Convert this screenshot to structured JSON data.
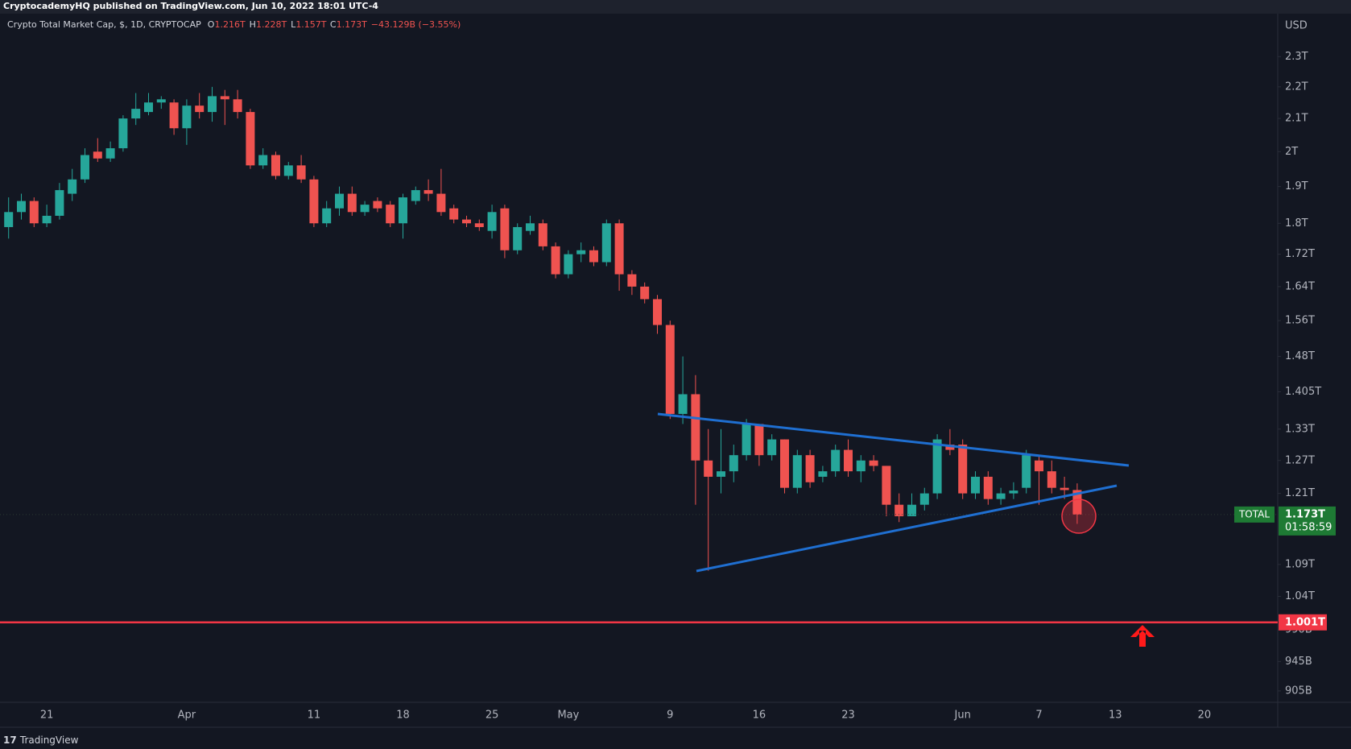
{
  "header": "CryptocademyHQ published on TradingView.com, Jun 10, 2022 18:01 UTC-4",
  "footer": "TradingView",
  "chart_data": {
    "type": "candlestick",
    "legend": {
      "symbol": "Crypto Total Market Cap, $, 1D, CRYPTOCAP",
      "fields": [
        {
          "key": "O",
          "value": "1.216T"
        },
        {
          "key": "H",
          "value": "1.228T"
        },
        {
          "key": "L",
          "value": "1.157T"
        },
        {
          "key": "C",
          "value": "1.173T"
        }
      ],
      "change": "−43.129B (−3.55%)"
    },
    "y_unit": "USD",
    "log_scale": true,
    "grid": false,
    "up_color": "#26a69a",
    "down_color": "#ef5350",
    "categories": [
      null,
      null,
      null,
      "21",
      null,
      null,
      null,
      null,
      null,
      null,
      null,
      null,
      null,
      null,
      "Apr",
      null,
      null,
      null,
      null,
      null,
      null,
      null,
      null,
      null,
      "11",
      null,
      null,
      null,
      null,
      null,
      null,
      "18",
      null,
      null,
      null,
      null,
      null,
      null,
      "25",
      null,
      null,
      null,
      null,
      null,
      "May",
      null,
      null,
      null,
      null,
      null,
      null,
      null,
      "9",
      null,
      null,
      null,
      null,
      null,
      null,
      "16",
      null,
      null,
      null,
      null,
      null,
      null,
      "23",
      null,
      null,
      null,
      null,
      null,
      null,
      null,
      null,
      "Jun",
      null,
      null,
      null,
      null,
      null,
      "7",
      null,
      null,
      null,
      null,
      null,
      "13",
      null,
      null,
      null,
      null,
      null,
      null,
      "20",
      null,
      null,
      null,
      null,
      null
    ],
    "open": [
      1.79,
      1.83,
      1.86,
      1.8,
      1.82,
      1.88,
      1.92,
      2.0,
      1.98,
      2.01,
      2.1,
      2.12,
      2.15,
      2.15,
      2.07,
      2.14,
      2.12,
      2.17,
      2.16,
      2.12,
      1.96,
      1.99,
      1.93,
      1.96,
      1.92,
      1.8,
      1.84,
      1.88,
      1.83,
      1.86,
      1.85,
      1.8,
      1.86,
      1.89,
      1.88,
      1.84,
      1.81,
      1.8,
      1.78,
      1.84,
      1.73,
      1.78,
      1.8,
      1.74,
      1.67,
      1.72,
      1.73,
      1.7,
      1.8,
      1.67,
      1.64,
      1.61,
      1.55,
      1.36,
      1.4,
      1.27,
      1.24,
      1.25,
      1.28,
      1.34,
      1.28,
      1.31,
      1.22,
      1.28,
      1.24,
      1.25,
      1.29,
      1.25,
      1.27,
      1.26,
      1.19,
      1.17,
      1.19,
      1.21,
      1.3,
      1.3,
      1.21,
      1.24,
      1.2,
      1.21,
      1.22,
      1.27,
      1.25,
      1.22,
      1.216,
      null,
      null,
      null,
      null,
      null,
      null,
      null,
      null,
      null,
      null,
      null,
      null,
      null,
      null,
      null
    ],
    "high": [
      1.87,
      1.88,
      1.87,
      1.85,
      1.91,
      1.95,
      2.01,
      2.04,
      2.03,
      2.11,
      2.18,
      2.18,
      2.17,
      2.16,
      2.16,
      2.18,
      2.2,
      2.19,
      2.19,
      2.13,
      2.01,
      2.0,
      1.97,
      1.99,
      1.93,
      1.86,
      1.9,
      1.9,
      1.86,
      1.87,
      1.86,
      1.88,
      1.9,
      1.92,
      1.95,
      1.85,
      1.82,
      1.81,
      1.85,
      1.85,
      1.8,
      1.82,
      1.81,
      1.75,
      1.73,
      1.75,
      1.74,
      1.81,
      1.81,
      1.68,
      1.65,
      1.62,
      1.56,
      1.48,
      1.44,
      1.33,
      1.33,
      1.3,
      1.35,
      1.34,
      1.32,
      1.31,
      1.29,
      1.29,
      1.26,
      1.3,
      1.31,
      1.28,
      1.28,
      1.26,
      1.21,
      1.21,
      1.22,
      1.32,
      1.33,
      1.31,
      1.25,
      1.25,
      1.22,
      1.23,
      1.29,
      1.28,
      1.27,
      1.24,
      1.228,
      null,
      null,
      null,
      null,
      null,
      null,
      null,
      null,
      null,
      null,
      null,
      null,
      null,
      null,
      null
    ],
    "low": [
      1.76,
      1.81,
      1.79,
      1.79,
      1.81,
      1.86,
      1.91,
      1.97,
      1.97,
      2.0,
      2.08,
      2.11,
      2.13,
      2.05,
      2.02,
      2.1,
      2.09,
      2.08,
      2.1,
      1.95,
      1.95,
      1.92,
      1.92,
      1.91,
      1.79,
      1.79,
      1.82,
      1.82,
      1.82,
      1.83,
      1.79,
      1.76,
      1.85,
      1.86,
      1.82,
      1.8,
      1.79,
      1.78,
      1.76,
      1.71,
      1.72,
      1.77,
      1.73,
      1.66,
      1.66,
      1.7,
      1.69,
      1.69,
      1.63,
      1.62,
      1.6,
      1.53,
      1.35,
      1.34,
      1.19,
      1.08,
      1.21,
      1.23,
      1.27,
      1.26,
      1.27,
      1.21,
      1.21,
      1.22,
      1.23,
      1.24,
      1.24,
      1.23,
      1.25,
      1.17,
      1.16,
      1.17,
      1.18,
      1.2,
      1.28,
      1.2,
      1.2,
      1.19,
      1.19,
      1.2,
      1.21,
      1.19,
      1.21,
      1.2,
      1.157,
      null,
      null,
      null,
      null,
      null,
      null,
      null,
      null,
      null,
      null,
      null,
      null,
      null,
      null,
      null
    ],
    "close": [
      1.83,
      1.86,
      1.8,
      1.82,
      1.89,
      1.92,
      1.99,
      1.98,
      2.01,
      2.1,
      2.13,
      2.15,
      2.16,
      2.07,
      2.14,
      2.12,
      2.17,
      2.16,
      2.12,
      1.96,
      1.99,
      1.93,
      1.96,
      1.92,
      1.8,
      1.84,
      1.88,
      1.83,
      1.85,
      1.84,
      1.8,
      1.87,
      1.89,
      1.88,
      1.83,
      1.81,
      1.8,
      1.79,
      1.83,
      1.73,
      1.79,
      1.8,
      1.74,
      1.67,
      1.72,
      1.73,
      1.7,
      1.8,
      1.67,
      1.64,
      1.61,
      1.55,
      1.36,
      1.4,
      1.27,
      1.24,
      1.25,
      1.28,
      1.34,
      1.28,
      1.31,
      1.22,
      1.28,
      1.23,
      1.25,
      1.29,
      1.25,
      1.27,
      1.26,
      1.19,
      1.17,
      1.19,
      1.21,
      1.31,
      1.29,
      1.21,
      1.24,
      1.2,
      1.21,
      1.215,
      1.28,
      1.25,
      1.22,
      1.216,
      1.173,
      null,
      null,
      null,
      null,
      null,
      null,
      null,
      null,
      null,
      null,
      null,
      null,
      null,
      null,
      null
    ],
    "ylim": [
      0.89,
      2.444
    ],
    "yticks": [
      {
        "value": 2.3,
        "label": "2.3T"
      },
      {
        "value": 2.2,
        "label": "2.2T"
      },
      {
        "value": 2.1,
        "label": "2.1T"
      },
      {
        "value": 2,
        "label": "2T"
      },
      {
        "value": 1.9,
        "label": "1.9T"
      },
      {
        "value": 1.8,
        "label": "1.8T"
      },
      {
        "value": 1.72,
        "label": "1.72T"
      },
      {
        "value": 1.64,
        "label": "1.64T"
      },
      {
        "value": 1.56,
        "label": "1.56T"
      },
      {
        "value": 1.48,
        "label": "1.48T"
      },
      {
        "value": 1.405,
        "label": "1.405T"
      },
      {
        "value": 1.33,
        "label": "1.33T"
      },
      {
        "value": 1.27,
        "label": "1.27T"
      },
      {
        "value": 1.21,
        "label": "1.21T"
      },
      {
        "value": 1.09,
        "label": "1.09T"
      },
      {
        "value": 1.04,
        "label": "1.04T"
      },
      {
        "value": 0.99,
        "label": "990B"
      },
      {
        "value": 0.945,
        "label": "945B"
      },
      {
        "value": 0.905,
        "label": "905B"
      }
    ],
    "hline": {
      "value": 1.001,
      "label": "1.001T",
      "color": "#f23645"
    },
    "last_price": {
      "name": "TOTAL",
      "value": 1.173,
      "label": "1.173T",
      "countdown": "01:58:59",
      "color": "#1e7a34"
    }
  }
}
